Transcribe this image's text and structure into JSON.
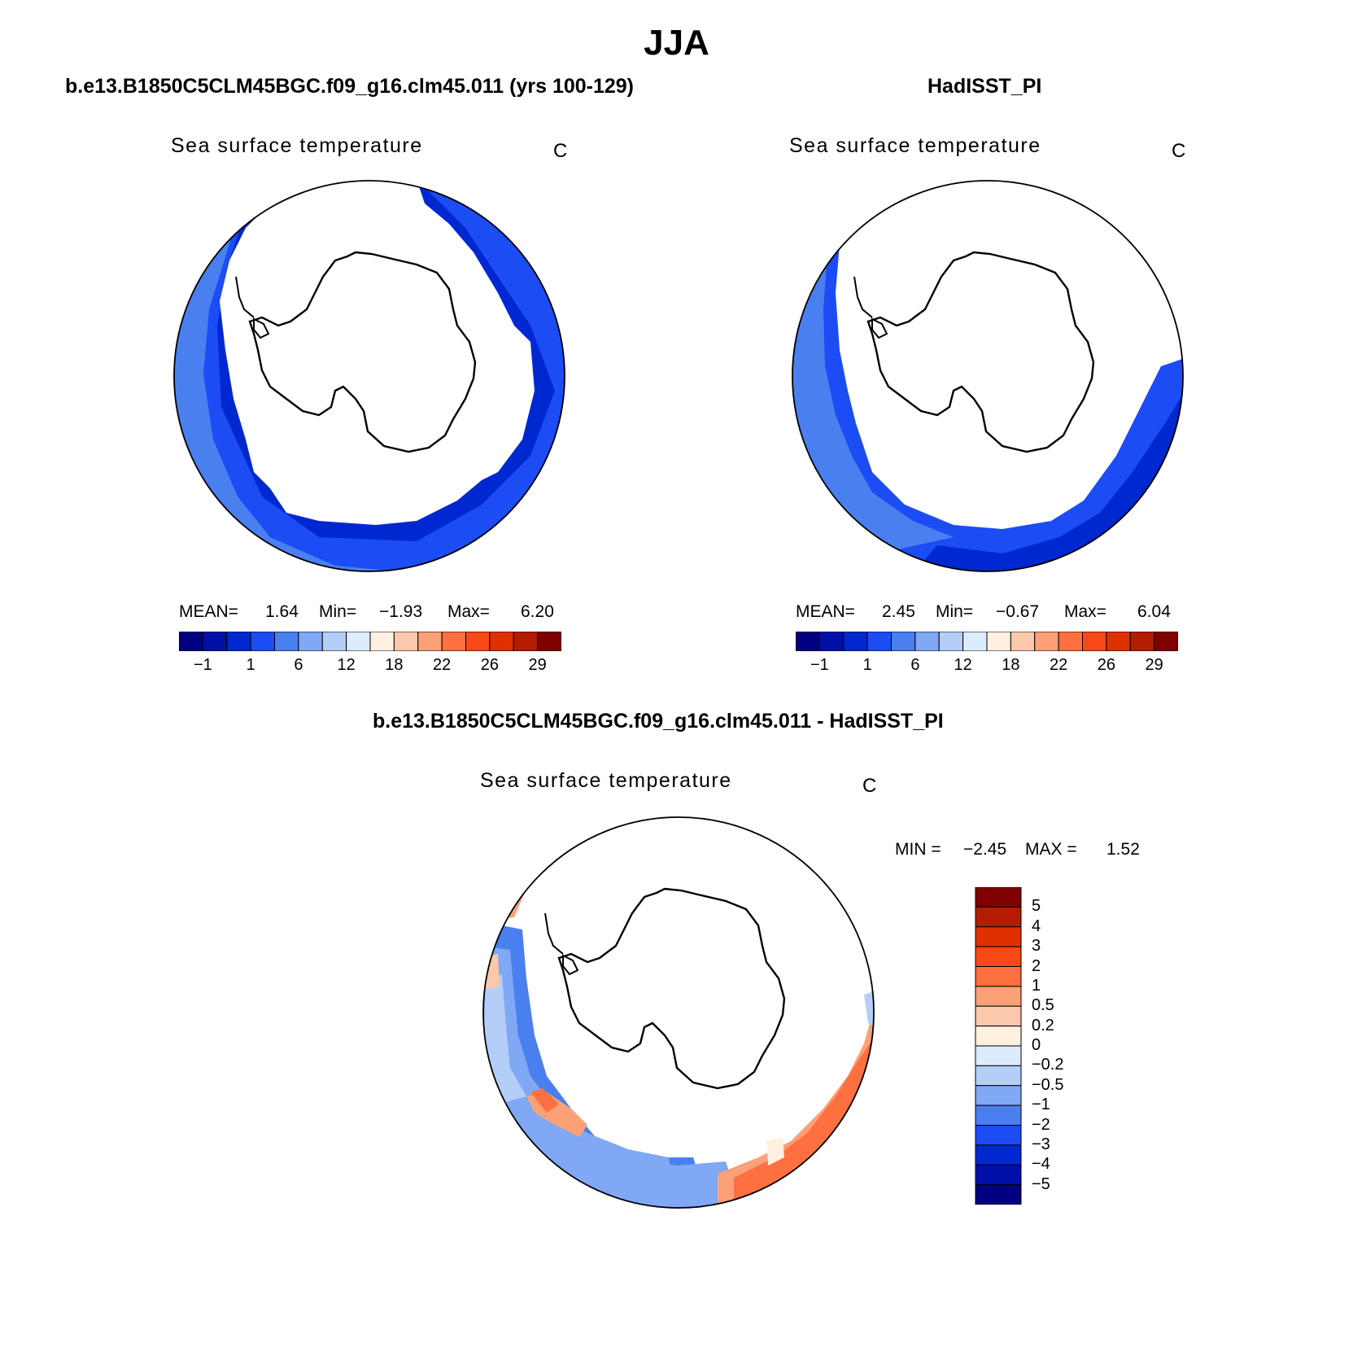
{
  "main_title": "JJA",
  "colors": {
    "seq_palette": [
      "#000080",
      "#0010a8",
      "#0028d0",
      "#1c4cf4",
      "#4a7ff0",
      "#80a8f4",
      "#b4cef8",
      "#dcecfc",
      "#fff0e0",
      "#fcc8ac",
      "#fca078",
      "#ff7040",
      "#f84818",
      "#e03000",
      "#b41c00",
      "#800000"
    ],
    "diff_palette": [
      "#000080",
      "#0010a8",
      "#0028d0",
      "#1c4cf4",
      "#4a7ff0",
      "#80a8f4",
      "#b4cef8",
      "#dcecfc",
      "#fff0e0",
      "#fcc8ac",
      "#fca078",
      "#ff7040",
      "#f84818",
      "#e03000",
      "#b41c00",
      "#800000"
    ]
  },
  "panels": [
    {
      "id": "model",
      "title": "b.e13.B1850C5CLM45BGC.f09_g16.clm45.011 (yrs 100-129)",
      "variable": "Sea surface temperature",
      "units": "C",
      "stats": {
        "mean_label": "MEAN=",
        "mean": "1.64",
        "min_label": "Min=",
        "min": "−1.93",
        "max_label": "Max=",
        "max": "6.20"
      },
      "colorbar_ticks": [
        "−1",
        "1",
        "6",
        "12",
        "18",
        "22",
        "26",
        "29"
      ]
    },
    {
      "id": "obs",
      "title": "HadISST_PI",
      "variable": "Sea surface temperature",
      "units": "C",
      "stats": {
        "mean_label": "MEAN=",
        "mean": "2.45",
        "min_label": "Min=",
        "min": "−0.67",
        "max_label": "Max=",
        "max": "6.04"
      },
      "colorbar_ticks": [
        "−1",
        "1",
        "6",
        "12",
        "18",
        "22",
        "26",
        "29"
      ]
    },
    {
      "id": "diff",
      "title": "b.e13.B1850C5CLM45BGC.f09_g16.clm45.011 - HadISST_PI",
      "variable": "Sea surface temperature",
      "units": "C",
      "stats": {
        "min_label": "MIN =",
        "min": "−2.45",
        "max_label": "MAX =",
        "max": "1.52"
      },
      "colorbar_ticks": [
        "5",
        "4",
        "3",
        "2",
        "1",
        "0.5",
        "0.2",
        "0",
        "−0.2",
        "−0.5",
        "−1",
        "−2",
        "−3",
        "−4",
        "−5"
      ]
    }
  ]
}
